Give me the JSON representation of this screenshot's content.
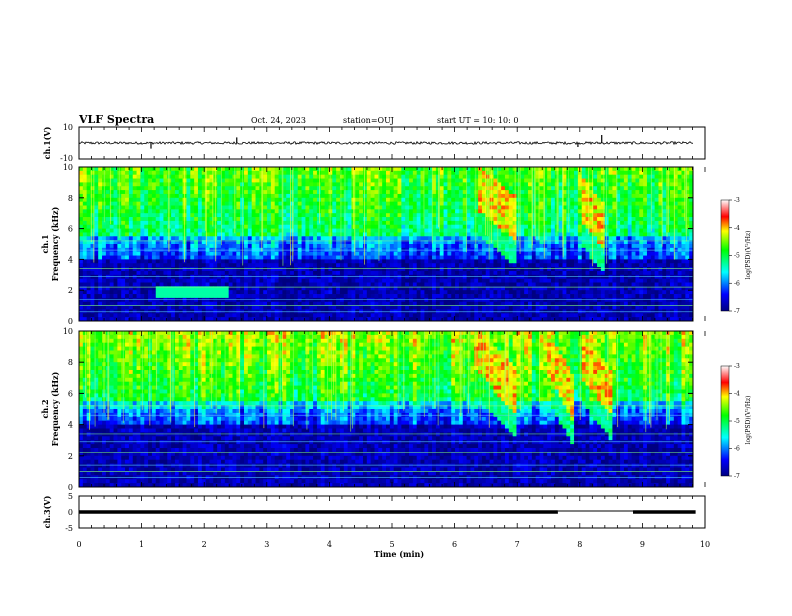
{
  "header": {
    "title": "VLF Spectra",
    "date": "Oct. 24, 2023",
    "station": "station=OUJ",
    "start": "start UT =   10: 10: 0"
  },
  "chart_data": [
    {
      "type": "line",
      "name": "ch1-waveform",
      "ylabel": "ch.1(V)",
      "ylim": [
        -10,
        10
      ],
      "ytick_labels": [
        "10",
        "-10"
      ],
      "xlim": [
        0,
        10
      ],
      "y_baseline": 0,
      "spikes": [
        {
          "x": 1.15,
          "y": -3.5
        },
        {
          "x": 2.52,
          "y": 3.5
        },
        {
          "x": 7.97,
          "y": -2.5
        },
        {
          "x": 8.35,
          "y": 5.0
        }
      ]
    },
    {
      "type": "heatmap",
      "name": "ch1-spectrogram",
      "ylabel_1": "ch.1",
      "ylabel_2": "Frequency (kHz)",
      "ylim": [
        0,
        10
      ],
      "ytick_labels": [
        "0",
        "2",
        "4",
        "6",
        "8",
        "10"
      ],
      "xlim": [
        0,
        10
      ],
      "colorbar": {
        "range": [
          -7,
          -3
        ],
        "labels": [
          "-3",
          "-4",
          "-5",
          "-6",
          "-7"
        ],
        "label": "log(PSD)(V²/Hz)"
      },
      "features": [
        {
          "desc": "chorus",
          "x_start": 6.4,
          "x_end": 7.0,
          "f_start": 7.5,
          "f_end": 5.5
        },
        {
          "desc": "chorus",
          "x_start": 8.0,
          "x_end": 8.4,
          "f_start": 7.0,
          "f_end": 5.0
        },
        {
          "desc": "hiss",
          "x_start": 1.2,
          "x_end": 2.4,
          "f_start": 1.8,
          "f_end": 1.8
        }
      ]
    },
    {
      "type": "heatmap",
      "name": "ch2-spectrogram",
      "ylabel_1": "ch.2",
      "ylabel_2": "Frequency (kHz)",
      "ylim": [
        0,
        10
      ],
      "ytick_labels": [
        "0",
        "2",
        "4",
        "6",
        "8",
        "10"
      ],
      "xlim": [
        0,
        10
      ],
      "colorbar": {
        "range": [
          -7,
          -3
        ],
        "labels": [
          "-3",
          "-4",
          "-5",
          "-6",
          "-7"
        ],
        "label": "log(PSD)(V²/Hz)"
      },
      "features": [
        {
          "desc": "chorus",
          "x_start": 6.3,
          "x_end": 7.0,
          "f_start": 8.0,
          "f_end": 5.0
        },
        {
          "desc": "chorus",
          "x_start": 7.5,
          "x_end": 7.9,
          "f_start": 7.5,
          "f_end": 4.5
        },
        {
          "desc": "chorus",
          "x_start": 8.0,
          "x_end": 8.5,
          "f_start": 7.5,
          "f_end": 5.0
        }
      ]
    },
    {
      "type": "line",
      "name": "ch3-trace",
      "ylabel": "ch.3(V)",
      "ylim": [
        -5,
        5
      ],
      "ytick_labels": [
        "5",
        "0",
        "-5"
      ],
      "xlim": [
        0,
        10
      ],
      "segments": [
        {
          "x_start": 0,
          "x_end": 7.65,
          "y": 0
        },
        {
          "x_start": 7.65,
          "x_end": 8.85,
          "y": 0.3
        },
        {
          "x_start": 8.85,
          "x_end": 9.85,
          "y": 0
        }
      ]
    }
  ],
  "xaxis": {
    "label": "Time (min)",
    "tick_labels": [
      "0",
      "1",
      "2",
      "3",
      "4",
      "5",
      "6",
      "7",
      "8",
      "9",
      "10"
    ]
  }
}
